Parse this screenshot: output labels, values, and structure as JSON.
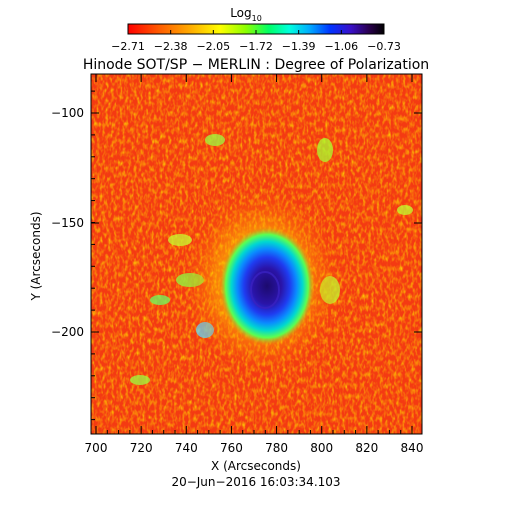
{
  "colorbar": {
    "label_main": "Log",
    "label_sub": "10",
    "ticks": [
      "−2.71",
      "−2.38",
      "−2.05",
      "−1.72",
      "−1.39",
      "−1.06",
      "−0.73"
    ],
    "colors": [
      "#ff0000",
      "#ff5500",
      "#ffaa00",
      "#ffff00",
      "#aaff00",
      "#00ff55",
      "#00ffcc",
      "#00aaff",
      "#0033ff",
      "#3300cc",
      "#330066",
      "#000000"
    ]
  },
  "title": "Hinode SOT/SP − MERLIN : Degree of Polarization",
  "x_axis": {
    "label": "X (Arcseconds)",
    "ticks": [
      "700",
      "720",
      "740",
      "760",
      "780",
      "800",
      "820",
      "840"
    ]
  },
  "y_axis": {
    "label": "Y (Arcseconds)",
    "ticks": [
      "−100",
      "−150",
      "−200"
    ]
  },
  "timestamp": "20−Jun−2016 16:03:34.103"
}
